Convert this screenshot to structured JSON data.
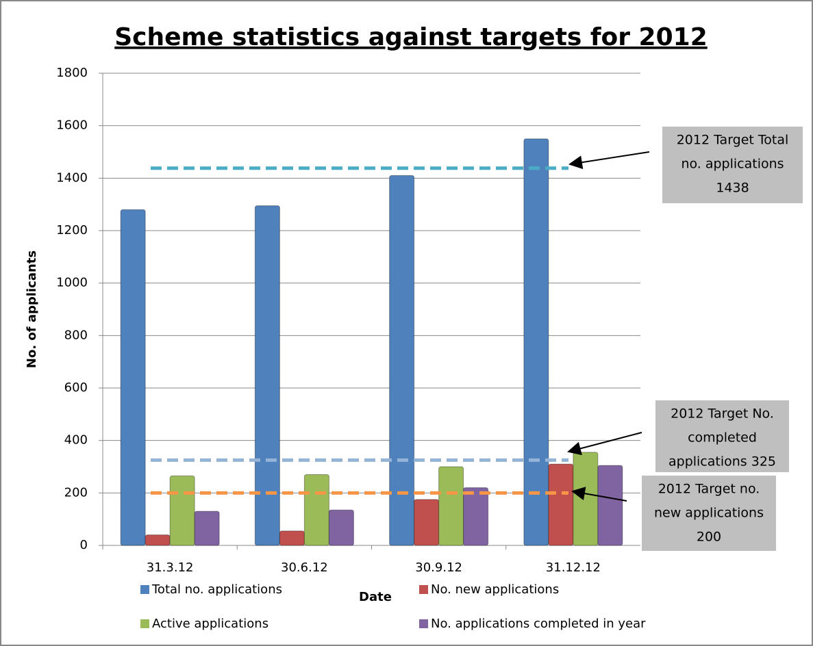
{
  "chart_data": {
    "type": "bar",
    "title": "Scheme statistics against targets for 2012",
    "x_label": "Date",
    "y_label": "No. of applicants",
    "categories": [
      "31.3.12",
      "30.6.12",
      "30.9.12",
      "31.12.12"
    ],
    "series": [
      {
        "name": "Total no. applications",
        "color": "#4f81bd",
        "values": [
          1280,
          1295,
          1410,
          1550
        ]
      },
      {
        "name": "No. new applications",
        "color": "#c0504d",
        "values": [
          40,
          55,
          175,
          310
        ]
      },
      {
        "name": "Active applications",
        "color": "#9bbb59",
        "values": [
          265,
          270,
          300,
          355
        ]
      },
      {
        "name": "No. applications completed in year",
        "color": "#8064a2",
        "values": [
          130,
          135,
          220,
          305
        ]
      }
    ],
    "ylim": [
      0,
      1800
    ],
    "yticks": [
      0,
      200,
      400,
      600,
      800,
      1000,
      1200,
      1400,
      1600,
      1800
    ],
    "grid": true,
    "targets": [
      {
        "value": 1438,
        "color": "#4bacc6",
        "lines": [
          "2012 Target Total",
          "no. applications",
          "1438"
        ]
      },
      {
        "value": 325,
        "color": "#95b3d7",
        "lines": [
          "2012 Target No.",
          "completed",
          "applications 325"
        ]
      },
      {
        "value": 200,
        "color": "#f79646",
        "lines": [
          "2012 Target no.",
          "new applications",
          "200"
        ]
      }
    ]
  }
}
